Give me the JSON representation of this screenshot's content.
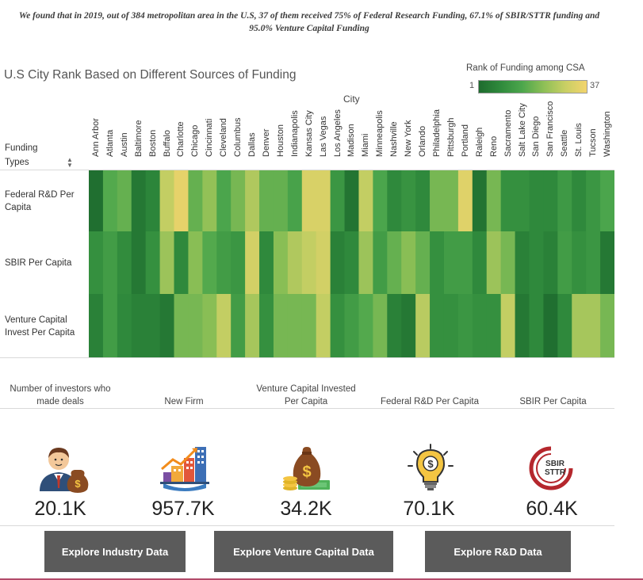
{
  "headline": {
    "line1": "We found that in 2019, out of 384 metropolitan area in the U.S, 37 of them received 75% of Federal Research Funding, 67.1% of SBIR/STTR funding and",
    "line2": "95.0% Venture Capital Funding"
  },
  "viz": {
    "title": "U.S City Rank Based on Different Sources of Funding",
    "legend_title": "Rank of Funding among CSA",
    "legend_min": "1",
    "legend_max": "37",
    "column_header": "City",
    "row_header_line1": "Funding",
    "row_header_line2": "Types",
    "colors": {
      "rank_low": "#1e6b2e",
      "rank_high": "#f3d46d"
    }
  },
  "chart_data": {
    "type": "heatmap",
    "title": "U.S City Rank Based on Different Sources of Funding",
    "xlabel": "City",
    "ylabel": "Funding Types",
    "color_scale": {
      "label": "Rank of Funding among CSA",
      "min": 1,
      "max": 37,
      "low_color": "#1e6b2e",
      "high_color": "#f3d46d"
    },
    "x": [
      "Ann Arbor",
      "Atlanta",
      "Austin",
      "Baltimore",
      "Boston",
      "Buffalo",
      "Charlotte",
      "Chicago",
      "Cincinnati",
      "Cleveland",
      "Columbus",
      "Dallas",
      "Denver",
      "Houston",
      "Indianapolis",
      "Kansas City",
      "Las Vegas",
      "Los Angeles",
      "Madison",
      "Miami",
      "Minneapolis",
      "Nashville",
      "New York",
      "Orlando",
      "Philadelphia",
      "Pittsburgh",
      "Portland",
      "Raleigh",
      "Reno",
      "Sacramento",
      "Salt Lake City",
      "San Diego",
      "San Francisco",
      "Seattle",
      "St. Louis",
      "Tucson",
      "Washington"
    ],
    "y": [
      "Federal R&D Per Capita",
      "SBIR Per Capita",
      "Venture Capital Invest Per Capita"
    ],
    "values": [
      [
        2,
        18,
        20,
        4,
        7,
        30,
        35,
        20,
        25,
        17,
        22,
        28,
        20,
        20,
        16,
        33,
        33,
        12,
        3,
        30,
        17,
        8,
        11,
        8,
        22,
        22,
        34,
        3,
        22,
        10,
        10,
        8,
        8,
        13,
        8,
        12,
        17
      ],
      [
        10,
        14,
        9,
        4,
        10,
        26,
        8,
        24,
        18,
        14,
        12,
        32,
        8,
        24,
        28,
        30,
        32,
        6,
        8,
        26,
        14,
        20,
        24,
        20,
        10,
        14,
        14,
        8,
        26,
        22,
        6,
        8,
        6,
        14,
        10,
        12,
        4
      ],
      [
        6,
        14,
        8,
        6,
        6,
        4,
        22,
        22,
        24,
        30,
        14,
        27,
        10,
        22,
        22,
        22,
        30,
        10,
        14,
        18,
        22,
        6,
        4,
        29,
        10,
        10,
        12,
        10,
        10,
        30,
        4,
        8,
        2,
        8,
        27,
        27,
        22
      ]
    ]
  },
  "kpis": [
    {
      "label_line1": "Number of investors who",
      "label_line2": "made deals",
      "value": "20.1K",
      "icon": "investor-icon"
    },
    {
      "label_line1": "",
      "label_line2": "New Firm",
      "value": "957.7K",
      "icon": "city-growth-icon"
    },
    {
      "label_line1": "Venture Capital Invested",
      "label_line2": "Per Capita",
      "value": "34.2K",
      "icon": "money-bag-icon"
    },
    {
      "label_line1": "",
      "label_line2": "Federal R&D Per Capita",
      "value": "70.1K",
      "icon": "lightbulb-dollar-icon"
    },
    {
      "label_line1": "",
      "label_line2": "SBIR Per Capita",
      "value": "60.4K",
      "icon": "sbir-sttr-logo-icon"
    }
  ],
  "sbir_logo": {
    "line1": "SBIR",
    "line2": "STTR"
  },
  "buttons": [
    {
      "label": "Explore Industry Data"
    },
    {
      "label": "Explore Venture Capital Data"
    },
    {
      "label": "Explore R&D Data"
    }
  ]
}
